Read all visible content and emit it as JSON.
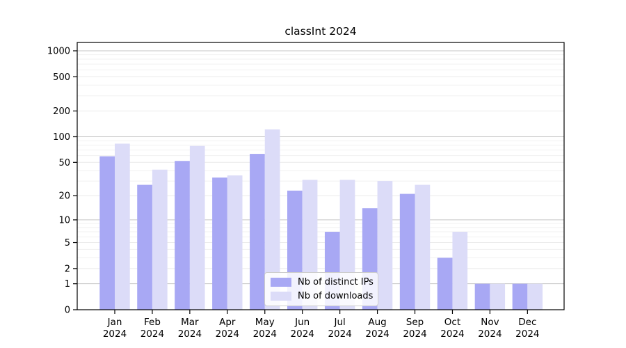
{
  "chart_data": {
    "type": "bar",
    "title": "classInt 2024",
    "categories": [
      "Jan",
      "Feb",
      "Mar",
      "Apr",
      "May",
      "Jun",
      "Jul",
      "Aug",
      "Sep",
      "Oct",
      "Nov",
      "Dec"
    ],
    "year_label": "2024",
    "series": [
      {
        "name": "Nb of distinct IPs",
        "color": "#a8a8f4",
        "values": [
          59,
          27,
          52,
          33,
          63,
          23,
          7,
          14,
          21,
          3,
          1,
          1
        ]
      },
      {
        "name": "Nb of downloads",
        "color": "#dcdcf8",
        "values": [
          83,
          41,
          78,
          35,
          122,
          31,
          31,
          30,
          27,
          7,
          1,
          1
        ]
      }
    ],
    "yscale": "log1p",
    "ylim": [
      0,
      1250
    ],
    "yticks": [
      0,
      1,
      2,
      5,
      10,
      20,
      50,
      100,
      200,
      500,
      1000
    ],
    "minor_yticks": [
      3,
      4,
      6,
      7,
      8,
      9,
      30,
      40,
      60,
      70,
      80,
      90,
      300,
      400,
      600,
      700,
      800,
      900
    ],
    "grid": true,
    "legend_position": "lower center"
  },
  "colors": {
    "major_gridline": "#c4c4c4",
    "sub_gridline": "#eaeaea",
    "minor_gridline": "#f1f1f1",
    "axis": "#000000",
    "background": "#ffffff"
  }
}
